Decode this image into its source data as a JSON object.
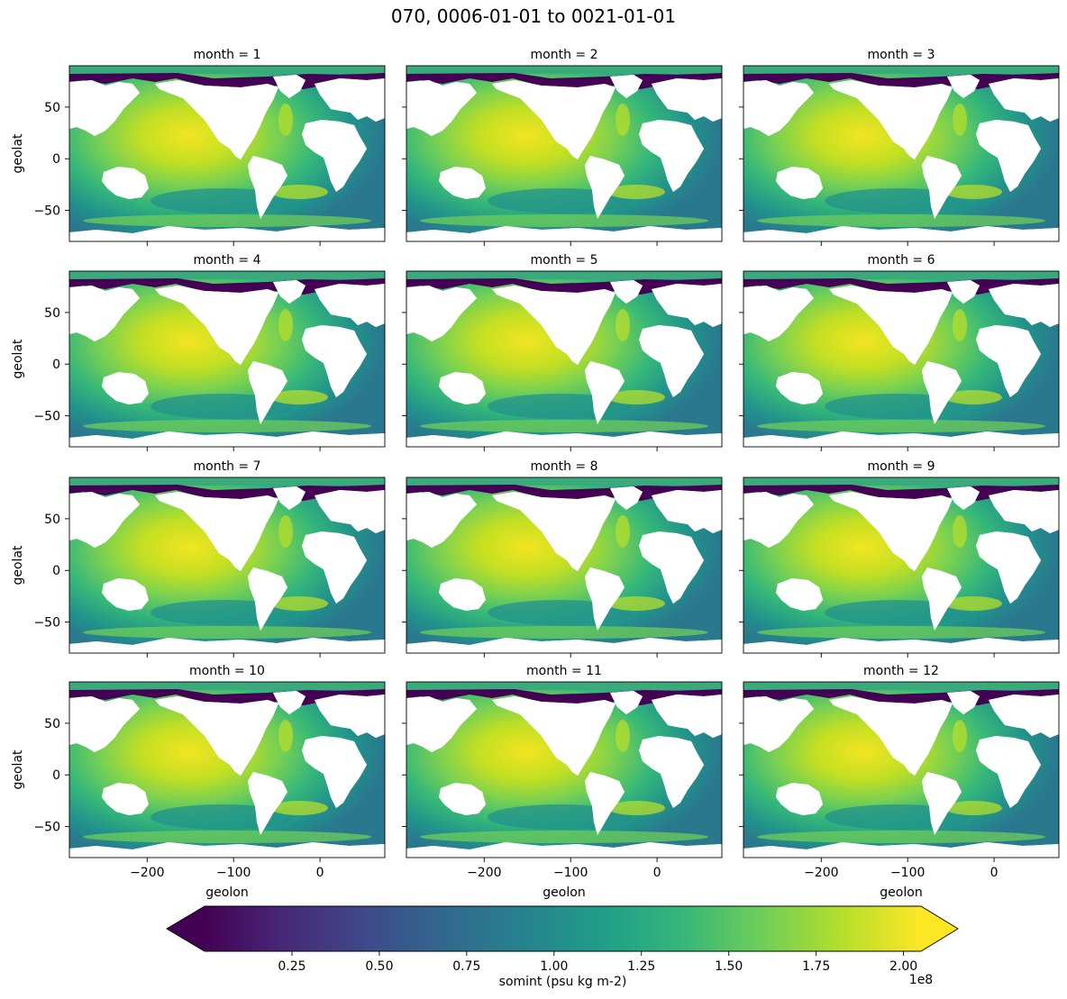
{
  "figure": {
    "suptitle": "070, 0006-01-01 to 0021-01-01"
  },
  "chart_data": {
    "type": "heatmap",
    "title": "070, 0006-01-01 to 0021-01-01",
    "variable": "somint",
    "xlabel": "geolon",
    "ylabel": "geolat",
    "xlim": [
      -290,
      75
    ],
    "ylim": [
      -80,
      90
    ],
    "xticks": [
      -200,
      -100,
      0
    ],
    "xtick_labels": [
      "−200",
      "−100",
      "0"
    ],
    "yticks": [
      50,
      0,
      -50
    ],
    "ytick_labels": [
      "50",
      "0",
      "−50"
    ],
    "colormap": "viridis",
    "colorbar": {
      "label": "somint (psu kg m-2)",
      "range": [
        0.0,
        2.05
      ],
      "ticks": [
        0.25,
        0.5,
        0.75,
        1.0,
        1.25,
        1.5,
        1.75,
        2.0
      ],
      "tick_labels": [
        "0.25",
        "0.50",
        "0.75",
        "1.00",
        "1.25",
        "1.50",
        "1.75",
        "2.00"
      ],
      "offset_label": "1e8",
      "extend": "both"
    },
    "panels": [
      {
        "title": "month = 1"
      },
      {
        "title": "month = 2"
      },
      {
        "title": "month = 3"
      },
      {
        "title": "month = 4"
      },
      {
        "title": "month = 5"
      },
      {
        "title": "month = 6"
      },
      {
        "title": "month = 7"
      },
      {
        "title": "month = 8"
      },
      {
        "title": "month = 9"
      },
      {
        "title": "month = 10"
      },
      {
        "title": "month = 11"
      },
      {
        "title": "month = 12"
      }
    ]
  },
  "colors": {
    "viridis": [
      "#440154",
      "#482878",
      "#3e4989",
      "#31688e",
      "#26828e",
      "#1f9e89",
      "#35b779",
      "#6ece58",
      "#b5de2b",
      "#fde725"
    ],
    "land": "#ffffff",
    "axes": "#000000"
  }
}
